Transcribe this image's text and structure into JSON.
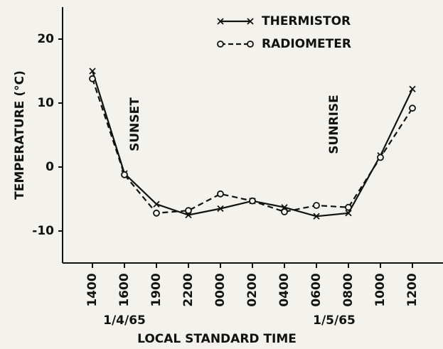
{
  "chart_data": {
    "type": "line",
    "categories": [
      "1400",
      "1600",
      "1900",
      "2200",
      "0000",
      "0200",
      "0400",
      "0600",
      "0800",
      "1000",
      "1200"
    ],
    "series": [
      {
        "name": "THERMISTOR",
        "color": "#111111",
        "marker": "x",
        "dash": false,
        "values": [
          15,
          -1,
          -5.8,
          -7.5,
          -6.5,
          -5.3,
          -6.3,
          -7.7,
          -7.2,
          1.8,
          12.2
        ]
      },
      {
        "name": "RADIOMETER",
        "color": "#111111",
        "marker": "o",
        "dash": true,
        "values": [
          13.8,
          -1.2,
          -7.2,
          -6.8,
          -4.2,
          -5.3,
          -7.0,
          -6.0,
          -6.3,
          1.5,
          9.2
        ]
      }
    ],
    "ylabel": "TEMPERATURE (°C)",
    "xlabel": "LOCAL STANDARD TIME",
    "annotations": [
      "SUNSET",
      "SUNRISE"
    ],
    "date_labels": [
      "1/4/65",
      "1/5/65"
    ],
    "ylim": [
      -15,
      25
    ],
    "yticks": [
      -10,
      0,
      10,
      20
    ],
    "grid": false,
    "legend": "top"
  }
}
